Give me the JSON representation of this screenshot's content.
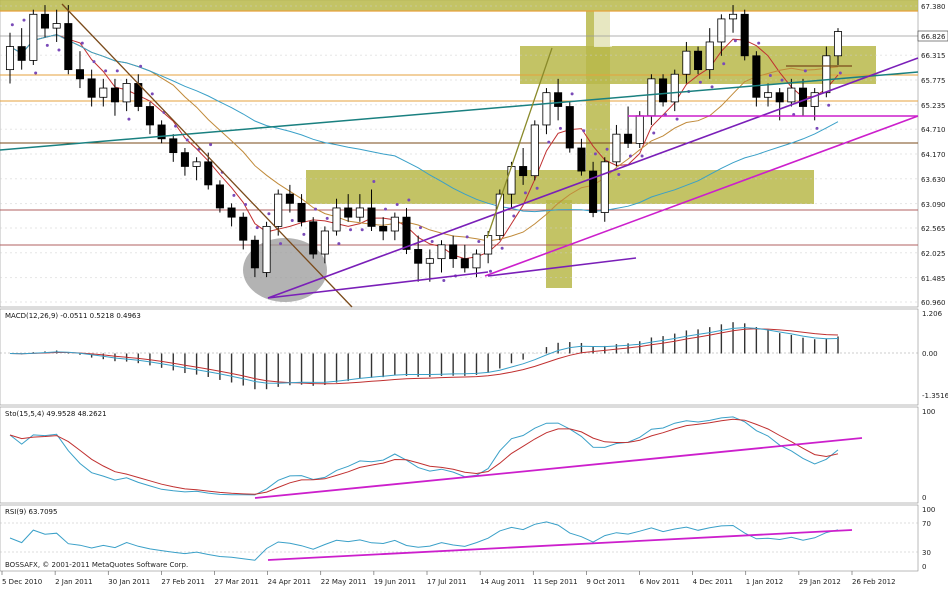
{
  "chart_data": {
    "type": "candlestick",
    "price_axis": {
      "ticks": [
        "67.380",
        "66.315",
        "65.775",
        "65.235",
        "64.710",
        "64.170",
        "63.630",
        "63.090",
        "62.565",
        "62.025",
        "61.485",
        "60.960"
      ],
      "last_price": "66.826",
      "range": [
        60.96,
        67.38
      ]
    },
    "date_axis": {
      "ticks": [
        "5 Dec 2010",
        "2 Jan 2011",
        "30 Jan 2011",
        "27 Feb 2011",
        "27 Mar 2011",
        "24 Apr 2011",
        "22 May 2011",
        "19 Jun 2011",
        "17 Jul 2011",
        "14 Aug 2011",
        "11 Sep 2011",
        "9 Oct 2011",
        "6 Nov 2011",
        "4 Dec 2011",
        "1 Jan 2012",
        "29 Jan 2012",
        "26 Feb 2012"
      ]
    },
    "candles": [
      [
        66.0,
        66.8,
        65.7,
        66.5
      ],
      [
        66.5,
        66.9,
        66.0,
        66.2
      ],
      [
        66.2,
        67.3,
        66.1,
        67.2
      ],
      [
        67.2,
        67.4,
        66.7,
        66.9
      ],
      [
        66.9,
        67.3,
        66.6,
        67.0
      ],
      [
        67.0,
        67.4,
        65.9,
        66.0
      ],
      [
        66.0,
        66.4,
        65.6,
        65.8
      ],
      [
        65.8,
        66.0,
        65.2,
        65.4
      ],
      [
        65.4,
        65.8,
        65.2,
        65.6
      ],
      [
        65.6,
        65.8,
        65.0,
        65.3
      ],
      [
        65.3,
        65.8,
        65.1,
        65.7
      ],
      [
        65.7,
        65.9,
        65.1,
        65.2
      ],
      [
        65.2,
        65.3,
        64.6,
        64.8
      ],
      [
        64.8,
        64.9,
        64.4,
        64.5
      ],
      [
        64.5,
        64.6,
        64.0,
        64.2
      ],
      [
        64.2,
        64.3,
        63.7,
        63.9
      ],
      [
        63.9,
        64.1,
        63.6,
        64.0
      ],
      [
        64.0,
        64.2,
        63.4,
        63.5
      ],
      [
        63.5,
        63.6,
        62.9,
        63.0
      ],
      [
        63.0,
        63.1,
        62.6,
        62.8
      ],
      [
        62.8,
        62.9,
        62.1,
        62.3
      ],
      [
        62.3,
        62.4,
        61.5,
        61.7
      ],
      [
        61.6,
        62.7,
        61.5,
        62.6
      ],
      [
        62.6,
        63.4,
        62.4,
        63.3
      ],
      [
        63.3,
        63.5,
        62.9,
        63.1
      ],
      [
        63.1,
        63.3,
        62.6,
        62.7
      ],
      [
        62.7,
        62.8,
        61.9,
        62.0
      ],
      [
        62.0,
        62.6,
        61.8,
        62.5
      ],
      [
        62.5,
        63.2,
        62.4,
        63.0
      ],
      [
        63.0,
        63.3,
        62.7,
        62.8
      ],
      [
        62.8,
        63.3,
        62.7,
        63.0
      ],
      [
        63.0,
        63.4,
        62.5,
        62.6
      ],
      [
        62.6,
        62.8,
        62.3,
        62.5
      ],
      [
        62.5,
        62.9,
        62.3,
        62.8
      ],
      [
        62.8,
        63.0,
        62.0,
        62.1
      ],
      [
        62.1,
        62.4,
        61.4,
        61.8
      ],
      [
        61.8,
        62.1,
        61.4,
        61.9
      ],
      [
        61.9,
        62.3,
        61.6,
        62.2
      ],
      [
        62.2,
        62.4,
        61.7,
        61.9
      ],
      [
        61.9,
        62.2,
        61.6,
        61.7
      ],
      [
        61.7,
        62.1,
        61.5,
        62.0
      ],
      [
        62.0,
        62.5,
        61.8,
        62.4
      ],
      [
        62.4,
        63.4,
        62.3,
        63.3
      ],
      [
        63.3,
        64.0,
        63.0,
        63.9
      ],
      [
        63.9,
        64.3,
        63.5,
        63.7
      ],
      [
        63.7,
        64.9,
        63.6,
        64.8
      ],
      [
        64.8,
        65.6,
        64.6,
        65.5
      ],
      [
        65.5,
        65.8,
        64.9,
        65.2
      ],
      [
        65.2,
        65.3,
        64.2,
        64.3
      ],
      [
        64.3,
        64.5,
        63.7,
        63.8
      ],
      [
        63.8,
        64.0,
        62.8,
        62.9
      ],
      [
        62.9,
        64.1,
        62.7,
        64.0
      ],
      [
        64.0,
        64.8,
        63.9,
        64.6
      ],
      [
        64.6,
        65.2,
        64.3,
        64.4
      ],
      [
        64.4,
        65.1,
        64.3,
        65.0
      ],
      [
        65.0,
        65.9,
        64.8,
        65.8
      ],
      [
        65.8,
        65.9,
        65.2,
        65.3
      ],
      [
        65.3,
        66.0,
        65.1,
        65.9
      ],
      [
        65.9,
        66.6,
        65.7,
        66.4
      ],
      [
        66.4,
        66.5,
        65.9,
        66.0
      ],
      [
        66.0,
        66.9,
        65.8,
        66.6
      ],
      [
        66.6,
        67.2,
        66.3,
        67.1
      ],
      [
        67.1,
        67.4,
        66.8,
        67.2
      ],
      [
        67.2,
        67.3,
        66.2,
        66.3
      ],
      [
        66.3,
        66.4,
        65.2,
        65.4
      ],
      [
        65.4,
        65.7,
        65.2,
        65.5
      ],
      [
        65.5,
        65.6,
        64.9,
        65.3
      ],
      [
        65.3,
        65.8,
        65.2,
        65.6
      ],
      [
        65.6,
        65.8,
        65.0,
        65.2
      ],
      [
        65.2,
        65.6,
        64.9,
        65.5
      ],
      [
        65.5,
        66.5,
        65.4,
        66.3
      ],
      [
        66.3,
        66.9,
        66.1,
        66.826
      ]
    ],
    "panels": [
      {
        "name": "MACD",
        "header": "MACD(12,26,9) -0.0511 0.5218 0.4963",
        "ticks": [
          "1.206",
          "0.00",
          "-1.3516"
        ]
      },
      {
        "name": "Stochastic",
        "header": "Sto(15,5,4) 49.9528 48.2621",
        "ticks": [
          "100",
          "0"
        ]
      },
      {
        "name": "RSI",
        "header": "RSI(9) 63.7095",
        "ticks": [
          "100",
          "70",
          "30",
          "0"
        ]
      }
    ],
    "copyright": "BOSSAFX, © 2001-2011 MetaQuotes Software Corp.",
    "colors": {
      "candle_up": "#ffffff",
      "candle_down": "#000000",
      "zone": "#b8b84a",
      "trend_purple": "#7a1fb8",
      "trend_magenta": "#cc1fcc",
      "trend_teal": "#1a8080",
      "trend_brown": "#7a4a1a",
      "level_orange": "#e6a23c",
      "level_red": "#b06060"
    }
  }
}
